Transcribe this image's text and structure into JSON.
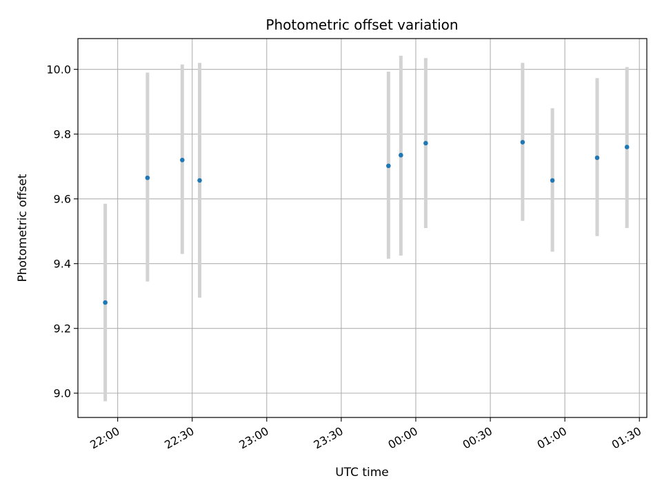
{
  "chart_data": {
    "type": "scatter",
    "title": "Photometric offset variation",
    "xlabel": "UTC time",
    "ylabel": "Photometric offset",
    "x_unit": "time of day (HH:MM)",
    "xlim": [
      "21:44",
      "01:33"
    ],
    "ylim": [
      8.925,
      10.095
    ],
    "x_ticks": [
      "22:00",
      "22:30",
      "23:00",
      "23:30",
      "00:00",
      "00:30",
      "01:00",
      "01:30"
    ],
    "y_ticks": [
      "9.0",
      "9.2",
      "9.4",
      "9.6",
      "9.8",
      "10.0"
    ],
    "grid": true,
    "x_tick_rotation": "rotated 30°, right-aligned",
    "series": [
      {
        "points": [
          {
            "x": "21:55",
            "y": 9.28,
            "y_low": 8.975,
            "y_high": 9.585
          },
          {
            "x": "22:12",
            "y": 9.665,
            "y_low": 9.345,
            "y_high": 9.99
          },
          {
            "x": "22:26",
            "y": 9.72,
            "y_low": 9.43,
            "y_high": 10.015
          },
          {
            "x": "22:33",
            "y": 9.657,
            "y_low": 9.295,
            "y_high": 10.02
          },
          {
            "x": "23:49",
            "y": 9.702,
            "y_low": 9.415,
            "y_high": 9.993
          },
          {
            "x": "23:54",
            "y": 9.735,
            "y_low": 9.425,
            "y_high": 10.042
          },
          {
            "x": "00:04",
            "y": 9.772,
            "y_low": 9.51,
            "y_high": 10.035
          },
          {
            "x": "00:43",
            "y": 9.775,
            "y_low": 9.532,
            "y_high": 10.02
          },
          {
            "x": "00:55",
            "y": 9.657,
            "y_low": 9.437,
            "y_high": 9.88
          },
          {
            "x": "01:13",
            "y": 9.727,
            "y_low": 9.485,
            "y_high": 9.973
          },
          {
            "x": "01:25",
            "y": 9.76,
            "y_low": 9.51,
            "y_high": 10.007
          }
        ]
      }
    ],
    "colors": {
      "marker": "#1f77b4",
      "errorbar": "#d3d3d3",
      "grid": "#b0b0b0",
      "axes": "#000000"
    }
  }
}
